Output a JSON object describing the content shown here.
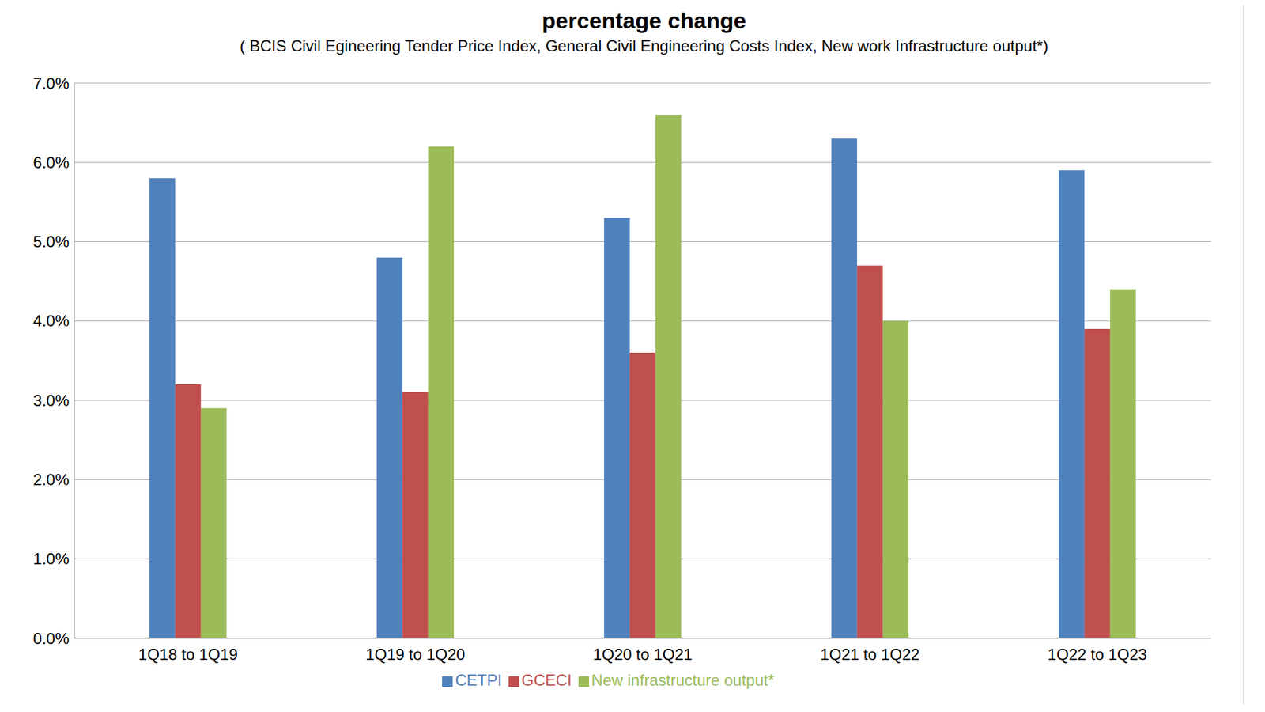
{
  "chart_data": {
    "type": "bar",
    "title": "percentage change",
    "subtitle": "( BCIS Civil Egineering Tender Price Index, General Civil Engineering Costs Index, New work Infrastructure output*)",
    "categories": [
      "1Q18 to 1Q19",
      "1Q19 to 1Q20",
      "1Q20 to 1Q21",
      "1Q21 to 1Q22",
      "1Q22 to 1Q23"
    ],
    "series": [
      {
        "name": "CETPI",
        "color": "#4f81bd",
        "values": [
          5.8,
          4.8,
          5.3,
          6.3,
          5.9
        ]
      },
      {
        "name": "GCECI",
        "color": "#c0504d",
        "values": [
          3.2,
          3.1,
          3.6,
          4.7,
          3.9
        ]
      },
      {
        "name": "New infrastructure output*",
        "color": "#9bbb59",
        "values": [
          2.9,
          6.2,
          6.6,
          4.0,
          4.4
        ]
      }
    ],
    "ylim": [
      0,
      7
    ],
    "yticks": [
      {
        "value": 0,
        "label": "0.0%"
      },
      {
        "value": 1,
        "label": "1.0%"
      },
      {
        "value": 2,
        "label": "2.0%"
      },
      {
        "value": 3,
        "label": "3.0%"
      },
      {
        "value": 4,
        "label": "4.0%"
      },
      {
        "value": 5,
        "label": "5.0%"
      },
      {
        "value": 6,
        "label": "6.0%"
      },
      {
        "value": 7,
        "label": "7.0%"
      }
    ],
    "grid": true,
    "legend": "bottom"
  }
}
